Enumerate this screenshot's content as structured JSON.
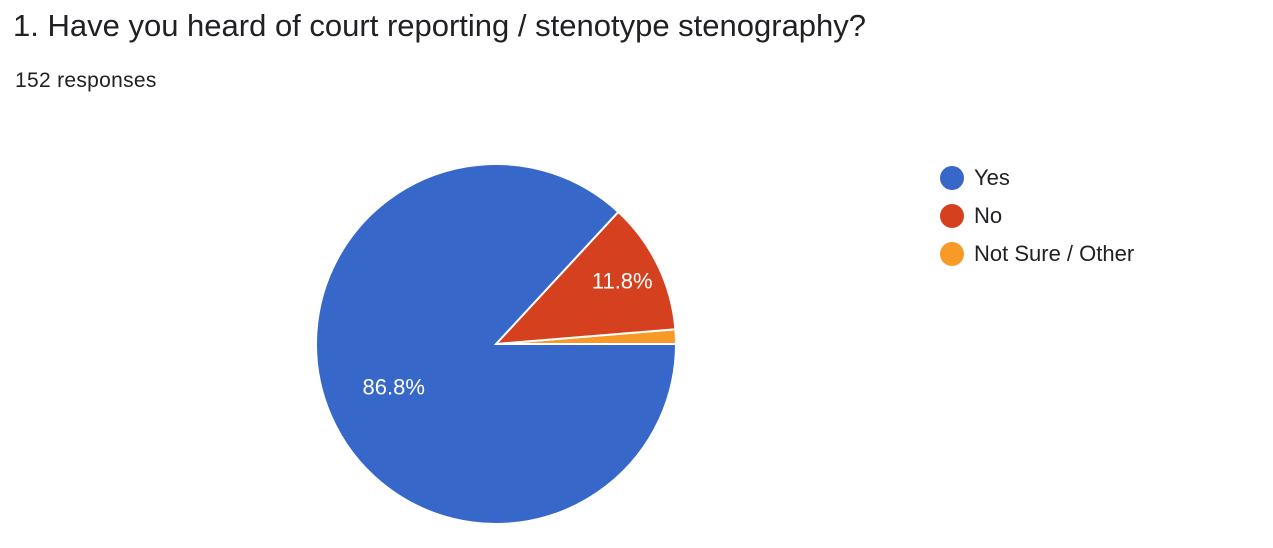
{
  "question": {
    "title": "1. Have you heard of court reporting / stenotype stenography?",
    "responses": "152 responses"
  },
  "chart_data": {
    "type": "pie",
    "categories": [
      "Yes",
      "No",
      "Not Sure / Other"
    ],
    "values": [
      86.8,
      11.8,
      1.3
    ],
    "colors": [
      "#3767c8",
      "#d5411f",
      "#f79a28"
    ],
    "data_labels": [
      "86.8%",
      "11.8%",
      ""
    ],
    "legend_position": "right"
  }
}
